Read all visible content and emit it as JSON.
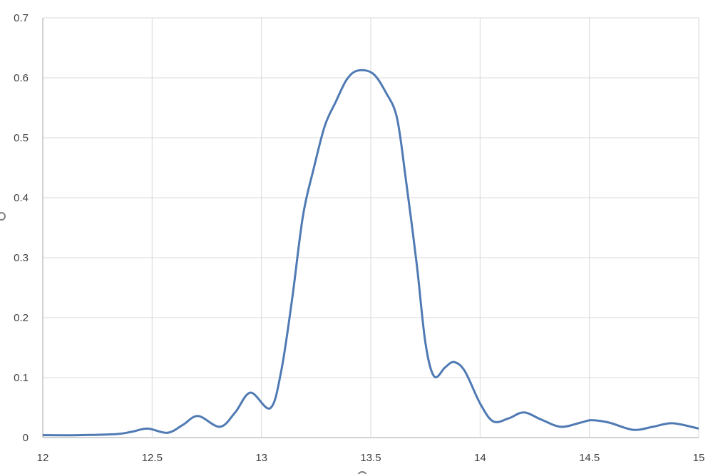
{
  "chart_data": {
    "type": "line",
    "title": "",
    "xlabel": "",
    "ylabel": "",
    "xlim": [
      12,
      15
    ],
    "ylim": [
      0,
      0.7
    ],
    "xticks": [
      "12",
      "12.5",
      "13",
      "13.5",
      "14",
      "14.5",
      "15"
    ],
    "yticks": [
      "0",
      "0.1",
      "0.2",
      "0.3",
      "0.4",
      "0.5",
      "0.6",
      "0.7"
    ],
    "grid": true,
    "smooth": true,
    "line_color": "#4f7ab3",
    "series": [
      {
        "x": [
          12,
          12.16,
          12.34,
          12.41,
          12.48,
          12.57,
          12.64,
          12.71,
          12.81,
          12.88,
          12.95,
          13.04,
          13.09,
          13.14,
          13.19,
          13.24,
          13.29,
          13.34,
          13.39,
          13.44,
          13.51,
          13.57,
          13.62,
          13.66,
          13.71,
          13.75,
          13.79,
          13.84,
          13.88,
          13.93,
          14.0,
          14.06,
          14.13,
          14.2,
          14.28,
          14.37,
          14.46,
          14.51,
          14.59,
          14.7,
          14.79,
          14.88,
          15
        ],
        "y": [
          0.004,
          0.004,
          0.006,
          0.01,
          0.015,
          0.008,
          0.021,
          0.036,
          0.018,
          0.042,
          0.075,
          0.049,
          0.11,
          0.23,
          0.37,
          0.45,
          0.52,
          0.56,
          0.597,
          0.612,
          0.607,
          0.575,
          0.533,
          0.432,
          0.29,
          0.158,
          0.102,
          0.117,
          0.126,
          0.111,
          0.057,
          0.027,
          0.032,
          0.042,
          0.03,
          0.018,
          0.025,
          0.029,
          0.025,
          0.013,
          0.018,
          0.024,
          0.015
        ]
      }
    ]
  }
}
